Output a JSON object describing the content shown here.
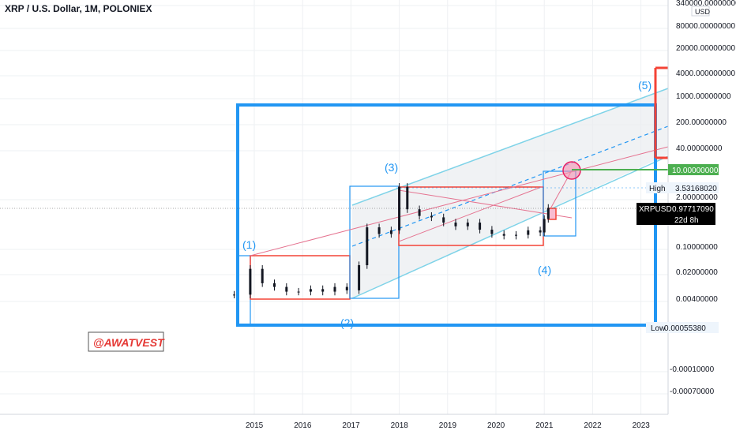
{
  "header": {
    "title": "XRP / U.S. Dollar, 1M, POLONIEX"
  },
  "colors": {
    "blue_frame": "#2196f3",
    "red": "#f44336",
    "channel": "#7fd3e8",
    "pink": "#e91e63",
    "green": "#4caf50",
    "grid": "#eef0f3",
    "candle": "#131722"
  },
  "price_axis": {
    "currency": "USD",
    "labels": [
      "340000.00000000",
      "80000.00000000",
      "20000.00000000",
      "4000.000000000",
      "1000.00000000",
      "200.00000000",
      "40.00000000",
      "2.00000000",
      "0.10000000",
      "0.02000000",
      "0.00400000",
      "-0.00010000",
      "-0.00070000"
    ],
    "target_label": "10.00000000",
    "high": {
      "label": "High",
      "value": "3.53168020"
    },
    "low": {
      "label": "Low",
      "value": "0.00055380"
    },
    "last": {
      "symbol": "XRPUSD",
      "value": "0.97717090",
      "countdown": "22d 8h"
    }
  },
  "annotations": {
    "wave_labels": [
      "(1)",
      "(2)",
      "(3)",
      "(4)",
      "(5)"
    ],
    "watermark": "@AWATVEST"
  },
  "chart_data": {
    "type": "candlestick",
    "title": "XRP / U.S. Dollar, 1M, POLONIEX",
    "xlabel": "",
    "ylabel": "",
    "x_ticks": [
      "2015",
      "2016",
      "2017",
      "2018",
      "2019",
      "2020",
      "2021",
      "2022",
      "2023"
    ],
    "y_scale": "log",
    "series": [
      {
        "approximate_monthly_closes": [
          {
            "x": "2014-08",
            "y": 0.005
          },
          {
            "x": "2014-12",
            "y": 0.024
          },
          {
            "x": "2015-03",
            "y": 0.01
          },
          {
            "x": "2015-06",
            "y": 0.008
          },
          {
            "x": "2015-09",
            "y": 0.006
          },
          {
            "x": "2015-12",
            "y": 0.006
          },
          {
            "x": "2016-03",
            "y": 0.007
          },
          {
            "x": "2016-06",
            "y": 0.006
          },
          {
            "x": "2016-09",
            "y": 0.008
          },
          {
            "x": "2016-12",
            "y": 0.0065
          },
          {
            "x": "2017-03",
            "y": 0.03
          },
          {
            "x": "2017-05",
            "y": 0.3
          },
          {
            "x": "2017-08",
            "y": 0.2
          },
          {
            "x": "2017-11",
            "y": 0.25
          },
          {
            "x": "2018-01",
            "y": 3.53
          },
          {
            "x": "2018-03",
            "y": 0.9
          },
          {
            "x": "2018-06",
            "y": 0.6
          },
          {
            "x": "2018-09",
            "y": 0.55
          },
          {
            "x": "2018-12",
            "y": 0.4
          },
          {
            "x": "2019-03",
            "y": 0.32
          },
          {
            "x": "2019-06",
            "y": 0.4
          },
          {
            "x": "2019-09",
            "y": 0.26
          },
          {
            "x": "2019-12",
            "y": 0.2
          },
          {
            "x": "2020-03",
            "y": 0.18
          },
          {
            "x": "2020-06",
            "y": 0.19
          },
          {
            "x": "2020-09",
            "y": 0.25
          },
          {
            "x": "2020-12",
            "y": 0.22
          },
          {
            "x": "2021-01",
            "y": 0.5
          },
          {
            "x": "2021-02",
            "y": 0.98
          }
        ]
      }
    ],
    "points": [
      {
        "label": "High",
        "y": 3.5316802
      },
      {
        "label": "Low",
        "y": 0.0005538
      },
      {
        "label": "XRPUSD",
        "y": 0.9771709
      },
      {
        "label": "target",
        "y": 10.0
      }
    ]
  }
}
